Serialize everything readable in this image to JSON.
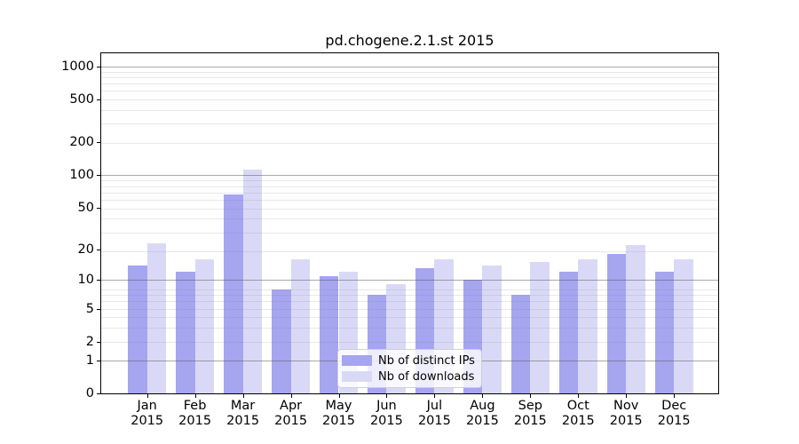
{
  "title": "pd.chogene.2.1.st 2015",
  "chart_data": {
    "type": "bar",
    "title": "pd.chogene.2.1.st 2015",
    "categories": [
      "Jan 2015",
      "Feb 2015",
      "Mar 2015",
      "Apr 2015",
      "May 2015",
      "Jun 2015",
      "Jul 2015",
      "Aug 2015",
      "Sep 2015",
      "Oct 2015",
      "Nov 2015",
      "Dec 2015"
    ],
    "x_months": [
      "Jan",
      "Feb",
      "Mar",
      "Apr",
      "May",
      "Jun",
      "Jul",
      "Aug",
      "Sep",
      "Oct",
      "Nov",
      "Dec"
    ],
    "year": "2015",
    "series": [
      {
        "name": "Nb of distinct IPs",
        "color": "#a5a5f0",
        "values": [
          14,
          12,
          66,
          8,
          11,
          7,
          13,
          10,
          7,
          12,
          18,
          12
        ]
      },
      {
        "name": "Nb of downloads",
        "color": "#d9d9f7",
        "values": [
          23,
          16,
          112,
          16,
          12,
          9,
          16,
          14,
          15,
          16,
          22,
          16
        ]
      }
    ],
    "xlabel": "",
    "ylabel": "",
    "yscale": "log10(value+1)",
    "yticks": [
      0,
      1,
      2,
      5,
      10,
      20,
      50,
      100,
      200,
      500,
      1000
    ],
    "ylim": [
      0,
      1320
    ],
    "grid": "horizontal; faint minor lines at log subdivisions, darker lines at 1, 10, 100, 1000",
    "legend_position": "lower center inside plot"
  }
}
